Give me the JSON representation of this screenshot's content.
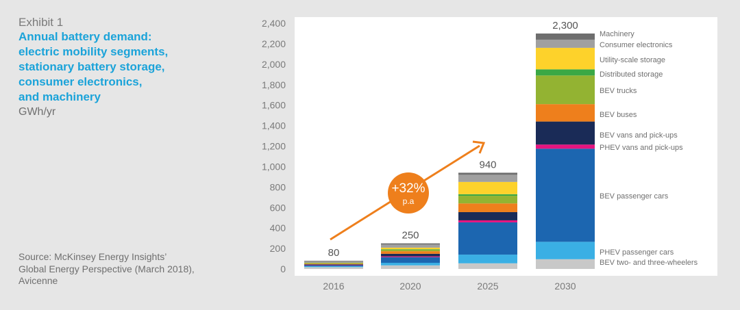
{
  "exhibit": "Exhibit 1",
  "title_lines": [
    "Annual battery demand:",
    "electric mobility segments,",
    "stationary battery storage,",
    "consumer electronics,",
    "and machinery"
  ],
  "unit": "GWh/yr",
  "source_lines": [
    "Source: McKinsey Energy Insights’",
    "Global Energy Perspective (March 2018),",
    "Avicenne"
  ],
  "cagr": {
    "value": "+32%",
    "label": "p.a",
    "color": "#ee7f1c"
  },
  "chart_data": {
    "type": "bar",
    "stacked": true,
    "title": "Annual battery demand",
    "ylabel": "GWh/yr",
    "xlabel": "",
    "ylim": [
      0,
      2400
    ],
    "ytick_step": 200,
    "categories": [
      "2016",
      "2020",
      "2025",
      "2030"
    ],
    "totals": [
      80,
      250,
      940,
      2300
    ],
    "total_labels": [
      "80",
      "250",
      "940",
      "2,300"
    ],
    "series": [
      {
        "name": "BEV two- and three-wheelers",
        "color": "#c8c8c8",
        "values": [
          18,
          35,
          55,
          95
        ]
      },
      {
        "name": "PHEV passenger cars",
        "color": "#3aafe4",
        "values": [
          8,
          25,
          85,
          170
        ]
      },
      {
        "name": "BEV passenger cars",
        "color": "#1c66b0",
        "values": [
          12,
          55,
          315,
          910
        ]
      },
      {
        "name": "PHEV vans and pick-ups",
        "color": "#e5147f",
        "values": [
          2,
          8,
          20,
          40
        ]
      },
      {
        "name": "BEV vans and pick-ups",
        "color": "#1a2b57",
        "values": [
          5,
          25,
          80,
          225
        ]
      },
      {
        "name": "BEV buses",
        "color": "#ee7f1c",
        "values": [
          6,
          25,
          85,
          170
        ]
      },
      {
        "name": "BEV trucks",
        "color": "#93b332",
        "values": [
          4,
          15,
          75,
          280
        ]
      },
      {
        "name": "Distributed storage",
        "color": "#3aa845",
        "values": [
          2,
          5,
          15,
          60
        ]
      },
      {
        "name": "Utility-scale storage",
        "color": "#fdd22b",
        "values": [
          3,
          15,
          120,
          210
        ]
      },
      {
        "name": "Consumer electronics",
        "color": "#a0a0a0",
        "values": [
          15,
          30,
          70,
          80
        ]
      },
      {
        "name": "Machinery",
        "color": "#6e6e6e",
        "values": [
          5,
          12,
          20,
          60
        ]
      }
    ]
  }
}
